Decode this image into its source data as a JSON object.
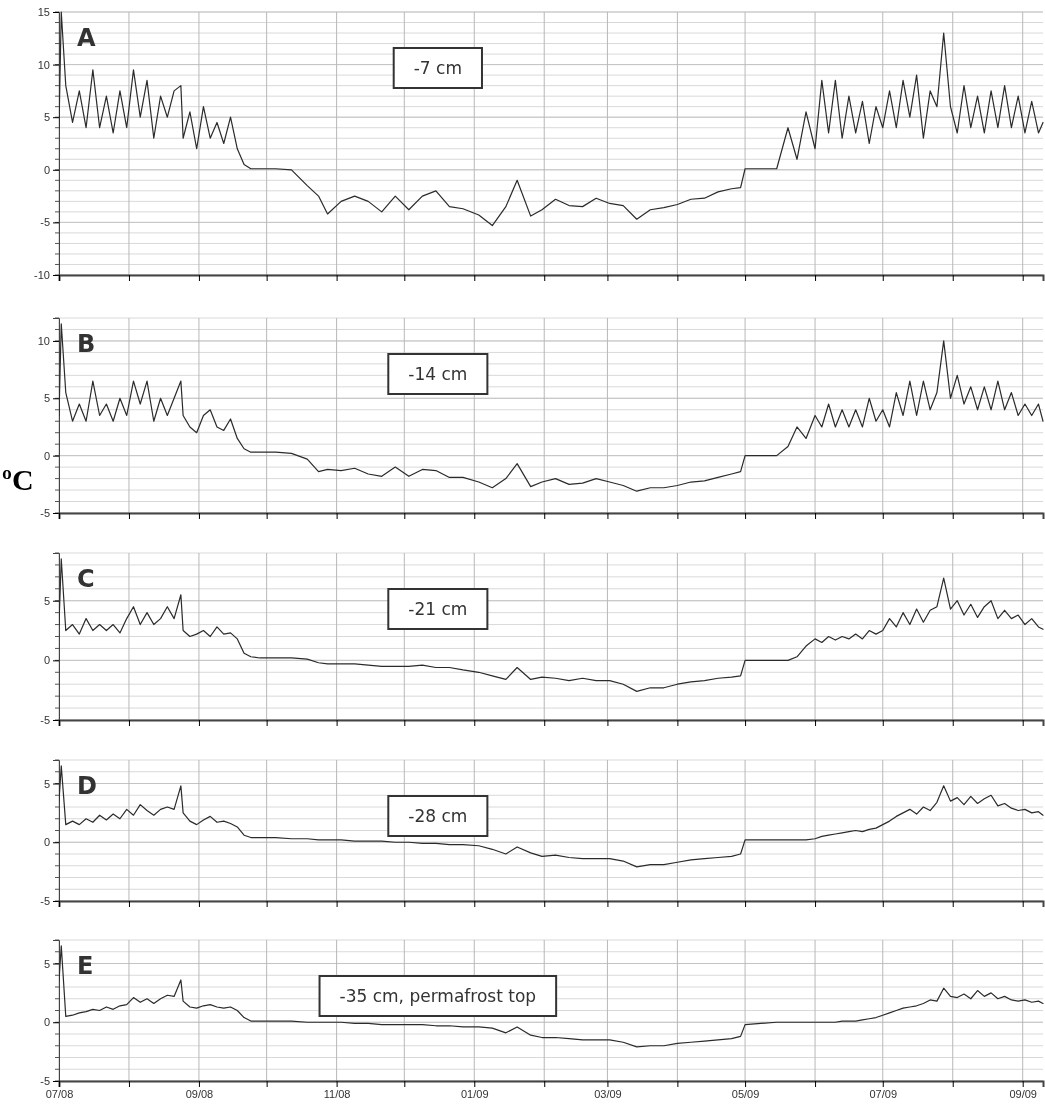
{
  "chart_data": [
    {
      "type": "line",
      "annotations": [
        "A",
        "-7 cm"
      ],
      "color": "#2b2b2b",
      "grid": true,
      "tick_labels": "y",
      "xlim": [
        "2008-07-01",
        "2009-09-10"
      ],
      "xticks": [
        {
          "value": "2008-07-01",
          "label": null
        },
        {
          "value": "2008-08-01",
          "label": null
        },
        {
          "value": "2008-09-01",
          "label": null
        },
        {
          "value": "2008-10-01",
          "label": null
        },
        {
          "value": "2008-11-01",
          "label": null
        },
        {
          "value": "2008-12-01",
          "label": null
        },
        {
          "value": "2009-01-01",
          "label": null
        },
        {
          "value": "2009-02-01",
          "label": null
        },
        {
          "value": "2009-03-01",
          "label": null
        },
        {
          "value": "2009-04-01",
          "label": null
        },
        {
          "value": "2009-05-01",
          "label": null
        },
        {
          "value": "2009-06-01",
          "label": null
        },
        {
          "value": "2009-07-01",
          "label": null
        },
        {
          "value": "2009-08-01",
          "label": null
        },
        {
          "value": "2009-09-01",
          "label": null
        }
      ],
      "ylim": [
        -10,
        15
      ],
      "yticks": [
        -10,
        -5,
        0,
        5,
        10,
        15
      ],
      "x": [
        "2008-07-01",
        "2008-07-02",
        "2008-07-04",
        "2008-07-07",
        "2008-07-10",
        "2008-07-13",
        "2008-07-16",
        "2008-07-19",
        "2008-07-22",
        "2008-07-25",
        "2008-07-28",
        "2008-07-31",
        "2008-08-03",
        "2008-08-06",
        "2008-08-09",
        "2008-08-12",
        "2008-08-15",
        "2008-08-18",
        "2008-08-21",
        "2008-08-24",
        "2008-08-25",
        "2008-08-28",
        "2008-08-31",
        "2008-09-03",
        "2008-09-06",
        "2008-09-09",
        "2008-09-12",
        "2008-09-15",
        "2008-09-18",
        "2008-09-21",
        "2008-09-24",
        "2008-09-28",
        "2008-10-05",
        "2008-10-12",
        "2008-10-19",
        "2008-10-24",
        "2008-10-28",
        "2008-11-03",
        "2008-11-09",
        "2008-11-15",
        "2008-11-21",
        "2008-11-27",
        "2008-12-03",
        "2008-12-09",
        "2008-12-15",
        "2008-12-21",
        "2008-12-27",
        "2009-01-03",
        "2009-01-09",
        "2009-01-15",
        "2009-01-20",
        "2009-01-26",
        "2009-01-31",
        "2009-02-06",
        "2009-02-12",
        "2009-02-18",
        "2009-02-24",
        "2009-03-02",
        "2009-03-08",
        "2009-03-14",
        "2009-03-20",
        "2009-03-26",
        "2009-04-01",
        "2009-04-07",
        "2009-04-13",
        "2009-04-19",
        "2009-04-25",
        "2009-04-29",
        "2009-05-01",
        "2009-05-08",
        "2009-05-15",
        "2009-05-20",
        "2009-05-24",
        "2009-05-28",
        "2009-06-01",
        "2009-06-04",
        "2009-06-07",
        "2009-06-10",
        "2009-06-13",
        "2009-06-16",
        "2009-06-19",
        "2009-06-22",
        "2009-06-25",
        "2009-06-28",
        "2009-07-01",
        "2009-07-04",
        "2009-07-07",
        "2009-07-10",
        "2009-07-13",
        "2009-07-16",
        "2009-07-19",
        "2009-07-22",
        "2009-07-25",
        "2009-07-28",
        "2009-07-31",
        "2009-08-03",
        "2009-08-06",
        "2009-08-09",
        "2009-08-12",
        "2009-08-15",
        "2009-08-18",
        "2009-08-21",
        "2009-08-24",
        "2009-08-27",
        "2009-08-30",
        "2009-09-02",
        "2009-09-05",
        "2009-09-08",
        "2009-09-10"
      ],
      "values": [
        4,
        15,
        8,
        4.5,
        7.5,
        4,
        9.5,
        4,
        7,
        3.5,
        7.5,
        4,
        9.5,
        5,
        8.5,
        3,
        7,
        5,
        7.5,
        8,
        3,
        5.5,
        2,
        6,
        3,
        4.5,
        2.5,
        5,
        2,
        0.5,
        0.1,
        0.1,
        0.1,
        0,
        -1.5,
        -2.5,
        -4.2,
        -3,
        -2.5,
        -3,
        -4,
        -2.5,
        -3.8,
        -2.5,
        -2,
        -3.5,
        -3.7,
        -4.3,
        -5.3,
        -3.5,
        -1,
        -4.4,
        -3.8,
        -2.8,
        -3.4,
        -3.5,
        -2.7,
        -3.2,
        -3.4,
        -4.7,
        -3.8,
        -3.6,
        -3.3,
        -2.8,
        -2.7,
        -2.1,
        -1.8,
        -1.7,
        0.1,
        0.1,
        0.1,
        4,
        1,
        5.5,
        2,
        8.5,
        3.5,
        8.5,
        3,
        7,
        3.5,
        6.5,
        2.5,
        6,
        4,
        7.5,
        4,
        8.5,
        5,
        9,
        3,
        7.5,
        6,
        13,
        6,
        3.5,
        8,
        4,
        7,
        3.5,
        7.5,
        4,
        8,
        4,
        7,
        3.5,
        6.5,
        3.5,
        4.5
      ]
    },
    {
      "type": "line",
      "annotations": [
        "B",
        "-14 cm"
      ],
      "ylabel": "ºC",
      "color": "#2b2b2b",
      "grid": true,
      "tick_labels": "y",
      "xlim": [
        "2008-07-01",
        "2009-09-10"
      ],
      "xticks": [
        {
          "value": "2008-07-01",
          "label": null
        },
        {
          "value": "2008-08-01",
          "label": null
        },
        {
          "value": "2008-09-01",
          "label": null
        },
        {
          "value": "2008-10-01",
          "label": null
        },
        {
          "value": "2008-11-01",
          "label": null
        },
        {
          "value": "2008-12-01",
          "label": null
        },
        {
          "value": "2009-01-01",
          "label": null
        },
        {
          "value": "2009-02-01",
          "label": null
        },
        {
          "value": "2009-03-01",
          "label": null
        },
        {
          "value": "2009-04-01",
          "label": null
        },
        {
          "value": "2009-05-01",
          "label": null
        },
        {
          "value": "2009-06-01",
          "label": null
        },
        {
          "value": "2009-07-01",
          "label": null
        },
        {
          "value": "2009-08-01",
          "label": null
        },
        {
          "value": "2009-09-01",
          "label": null
        }
      ],
      "ylim": [
        -5,
        12
      ],
      "yticks": [
        -5,
        0,
        5,
        10
      ],
      "x": [
        "2008-07-01",
        "2008-07-02",
        "2008-07-04",
        "2008-07-07",
        "2008-07-10",
        "2008-07-13",
        "2008-07-16",
        "2008-07-19",
        "2008-07-22",
        "2008-07-25",
        "2008-07-28",
        "2008-07-31",
        "2008-08-03",
        "2008-08-06",
        "2008-08-09",
        "2008-08-12",
        "2008-08-15",
        "2008-08-18",
        "2008-08-21",
        "2008-08-24",
        "2008-08-25",
        "2008-08-28",
        "2008-08-31",
        "2008-09-03",
        "2008-09-06",
        "2008-09-09",
        "2008-09-12",
        "2008-09-15",
        "2008-09-18",
        "2008-09-21",
        "2008-09-24",
        "2008-09-28",
        "2008-10-05",
        "2008-10-12",
        "2008-10-19",
        "2008-10-24",
        "2008-10-28",
        "2008-11-03",
        "2008-11-09",
        "2008-11-15",
        "2008-11-21",
        "2008-11-27",
        "2008-12-03",
        "2008-12-09",
        "2008-12-15",
        "2008-12-21",
        "2008-12-27",
        "2009-01-03",
        "2009-01-09",
        "2009-01-15",
        "2009-01-20",
        "2009-01-26",
        "2009-01-31",
        "2009-02-06",
        "2009-02-12",
        "2009-02-18",
        "2009-02-24",
        "2009-03-02",
        "2009-03-08",
        "2009-03-14",
        "2009-03-20",
        "2009-03-26",
        "2009-04-01",
        "2009-04-07",
        "2009-04-13",
        "2009-04-19",
        "2009-04-25",
        "2009-04-29",
        "2009-05-01",
        "2009-05-08",
        "2009-05-15",
        "2009-05-20",
        "2009-05-24",
        "2009-05-28",
        "2009-06-01",
        "2009-06-04",
        "2009-06-07",
        "2009-06-10",
        "2009-06-13",
        "2009-06-16",
        "2009-06-19",
        "2009-06-22",
        "2009-06-25",
        "2009-06-28",
        "2009-07-01",
        "2009-07-04",
        "2009-07-07",
        "2009-07-10",
        "2009-07-13",
        "2009-07-16",
        "2009-07-19",
        "2009-07-22",
        "2009-07-25",
        "2009-07-28",
        "2009-07-31",
        "2009-08-03",
        "2009-08-06",
        "2009-08-09",
        "2009-08-12",
        "2009-08-15",
        "2009-08-18",
        "2009-08-21",
        "2009-08-24",
        "2009-08-27",
        "2009-08-30",
        "2009-09-02",
        "2009-09-05",
        "2009-09-08",
        "2009-09-10"
      ],
      "values": [
        3.5,
        11.5,
        5.5,
        3,
        4.5,
        3,
        6.5,
        3.5,
        4.5,
        3,
        5,
        3.5,
        6.5,
        4.5,
        6.5,
        3,
        5,
        3.5,
        5,
        6.5,
        3.5,
        2.5,
        2,
        3.5,
        4,
        2.5,
        2.2,
        3.2,
        1.5,
        0.6,
        0.3,
        0.3,
        0.3,
        0.2,
        -0.3,
        -1.4,
        -1.2,
        -1.3,
        -1.1,
        -1.6,
        -1.8,
        -1,
        -1.8,
        -1.2,
        -1.3,
        -1.9,
        -1.9,
        -2.3,
        -2.8,
        -2,
        -0.7,
        -2.7,
        -2.3,
        -2,
        -2.5,
        -2.4,
        -2,
        -2.3,
        -2.6,
        -3.1,
        -2.8,
        -2.8,
        -2.6,
        -2.3,
        -2.2,
        -1.9,
        -1.6,
        -1.4,
        0,
        0,
        0,
        0.8,
        2.5,
        1.5,
        3.5,
        2.5,
        4.5,
        2.5,
        4,
        2.5,
        4,
        2.5,
        5,
        3,
        4,
        2.5,
        5.5,
        3.5,
        6.5,
        3.5,
        6.5,
        4,
        5.5,
        10,
        5,
        7,
        4.5,
        6,
        4,
        6,
        4,
        6.5,
        4,
        5.5,
        3.5,
        4.5,
        3.5,
        4.5,
        3
      ]
    },
    {
      "type": "line",
      "annotations": [
        "C",
        "-21 cm"
      ],
      "color": "#2b2b2b",
      "grid": true,
      "tick_labels": "y",
      "xlim": [
        "2008-07-01",
        "2009-09-10"
      ],
      "xticks": [
        {
          "value": "2008-07-01",
          "label": null
        },
        {
          "value": "2008-08-01",
          "label": null
        },
        {
          "value": "2008-09-01",
          "label": null
        },
        {
          "value": "2008-10-01",
          "label": null
        },
        {
          "value": "2008-11-01",
          "label": null
        },
        {
          "value": "2008-12-01",
          "label": null
        },
        {
          "value": "2009-01-01",
          "label": null
        },
        {
          "value": "2009-02-01",
          "label": null
        },
        {
          "value": "2009-03-01",
          "label": null
        },
        {
          "value": "2009-04-01",
          "label": null
        },
        {
          "value": "2009-05-01",
          "label": null
        },
        {
          "value": "2009-06-01",
          "label": null
        },
        {
          "value": "2009-07-01",
          "label": null
        },
        {
          "value": "2009-08-01",
          "label": null
        },
        {
          "value": "2009-09-01",
          "label": null
        }
      ],
      "ylim": [
        -5,
        9
      ],
      "yticks": [
        -5,
        0,
        5
      ],
      "x": [
        "2008-07-01",
        "2008-07-02",
        "2008-07-04",
        "2008-07-07",
        "2008-07-10",
        "2008-07-13",
        "2008-07-16",
        "2008-07-19",
        "2008-07-22",
        "2008-07-25",
        "2008-07-28",
        "2008-07-31",
        "2008-08-03",
        "2008-08-06",
        "2008-08-09",
        "2008-08-12",
        "2008-08-15",
        "2008-08-18",
        "2008-08-21",
        "2008-08-24",
        "2008-08-25",
        "2008-08-28",
        "2008-08-31",
        "2008-09-03",
        "2008-09-06",
        "2008-09-09",
        "2008-09-12",
        "2008-09-15",
        "2008-09-18",
        "2008-09-21",
        "2008-09-24",
        "2008-09-28",
        "2008-10-05",
        "2008-10-12",
        "2008-10-19",
        "2008-10-24",
        "2008-10-28",
        "2008-11-03",
        "2008-11-09",
        "2008-11-15",
        "2008-11-21",
        "2008-11-27",
        "2008-12-03",
        "2008-12-09",
        "2008-12-15",
        "2008-12-21",
        "2008-12-27",
        "2009-01-03",
        "2009-01-09",
        "2009-01-15",
        "2009-01-20",
        "2009-01-26",
        "2009-01-31",
        "2009-02-06",
        "2009-02-12",
        "2009-02-18",
        "2009-02-24",
        "2009-03-02",
        "2009-03-08",
        "2009-03-14",
        "2009-03-20",
        "2009-03-26",
        "2009-04-01",
        "2009-04-07",
        "2009-04-13",
        "2009-04-19",
        "2009-04-25",
        "2009-04-29",
        "2009-05-01",
        "2009-05-08",
        "2009-05-15",
        "2009-05-20",
        "2009-05-24",
        "2009-05-28",
        "2009-06-01",
        "2009-06-04",
        "2009-06-07",
        "2009-06-10",
        "2009-06-13",
        "2009-06-16",
        "2009-06-19",
        "2009-06-22",
        "2009-06-25",
        "2009-06-28",
        "2009-07-01",
        "2009-07-04",
        "2009-07-07",
        "2009-07-10",
        "2009-07-13",
        "2009-07-16",
        "2009-07-19",
        "2009-07-22",
        "2009-07-25",
        "2009-07-28",
        "2009-07-31",
        "2009-08-03",
        "2009-08-06",
        "2009-08-09",
        "2009-08-12",
        "2009-08-15",
        "2009-08-18",
        "2009-08-21",
        "2009-08-24",
        "2009-08-27",
        "2009-08-30",
        "2009-09-02",
        "2009-09-05",
        "2009-09-08",
        "2009-09-10"
      ],
      "values": [
        3,
        8.5,
        2.5,
        3,
        2.2,
        3.5,
        2.5,
        3,
        2.5,
        3,
        2.3,
        3.5,
        4.5,
        3,
        4,
        3,
        3.5,
        4.5,
        3.5,
        5.5,
        2.5,
        2,
        2.2,
        2.5,
        2,
        2.8,
        2.2,
        2.3,
        1.8,
        0.6,
        0.3,
        0.2,
        0.2,
        0.2,
        0.1,
        -0.2,
        -0.3,
        -0.3,
        -0.3,
        -0.4,
        -0.5,
        -0.5,
        -0.5,
        -0.4,
        -0.6,
        -0.6,
        -0.8,
        -1,
        -1.3,
        -1.6,
        -0.6,
        -1.6,
        -1.4,
        -1.5,
        -1.7,
        -1.5,
        -1.7,
        -1.7,
        -2,
        -2.6,
        -2.3,
        -2.3,
        -2,
        -1.8,
        -1.7,
        -1.5,
        -1.4,
        -1.3,
        0,
        0,
        0,
        0,
        0.3,
        1.2,
        1.8,
        1.5,
        2,
        1.7,
        2,
        1.8,
        2.2,
        1.8,
        2.5,
        2.2,
        2.5,
        3.5,
        2.8,
        4,
        3,
        4.3,
        3.2,
        4.2,
        4.5,
        6.9,
        4.3,
        5,
        3.8,
        4.7,
        3.6,
        4.5,
        5,
        3.5,
        4.2,
        3.5,
        3.8,
        3,
        3.5,
        2.8,
        2.6
      ]
    },
    {
      "type": "line",
      "annotations": [
        "D",
        "-28 cm"
      ],
      "color": "#2b2b2b",
      "grid": true,
      "tick_labels": "y",
      "xlim": [
        "2008-07-01",
        "2009-09-10"
      ],
      "xticks": [
        {
          "value": "2008-07-01",
          "label": null
        },
        {
          "value": "2008-08-01",
          "label": null
        },
        {
          "value": "2008-09-01",
          "label": null
        },
        {
          "value": "2008-10-01",
          "label": null
        },
        {
          "value": "2008-11-01",
          "label": null
        },
        {
          "value": "2008-12-01",
          "label": null
        },
        {
          "value": "2009-01-01",
          "label": null
        },
        {
          "value": "2009-02-01",
          "label": null
        },
        {
          "value": "2009-03-01",
          "label": null
        },
        {
          "value": "2009-04-01",
          "label": null
        },
        {
          "value": "2009-05-01",
          "label": null
        },
        {
          "value": "2009-06-01",
          "label": null
        },
        {
          "value": "2009-07-01",
          "label": null
        },
        {
          "value": "2009-08-01",
          "label": null
        },
        {
          "value": "2009-09-01",
          "label": null
        }
      ],
      "ylim": [
        -5,
        7
      ],
      "yticks": [
        -5,
        0,
        5
      ],
      "x": [
        "2008-07-01",
        "2008-07-02",
        "2008-07-04",
        "2008-07-07",
        "2008-07-10",
        "2008-07-13",
        "2008-07-16",
        "2008-07-19",
        "2008-07-22",
        "2008-07-25",
        "2008-07-28",
        "2008-07-31",
        "2008-08-03",
        "2008-08-06",
        "2008-08-09",
        "2008-08-12",
        "2008-08-15",
        "2008-08-18",
        "2008-08-21",
        "2008-08-24",
        "2008-08-25",
        "2008-08-28",
        "2008-08-31",
        "2008-09-03",
        "2008-09-06",
        "2008-09-09",
        "2008-09-12",
        "2008-09-15",
        "2008-09-18",
        "2008-09-21",
        "2008-09-24",
        "2008-09-28",
        "2008-10-05",
        "2008-10-12",
        "2008-10-19",
        "2008-10-24",
        "2008-10-28",
        "2008-11-03",
        "2008-11-09",
        "2008-11-15",
        "2008-11-21",
        "2008-11-27",
        "2008-12-03",
        "2008-12-09",
        "2008-12-15",
        "2008-12-21",
        "2008-12-27",
        "2009-01-03",
        "2009-01-09",
        "2009-01-15",
        "2009-01-20",
        "2009-01-26",
        "2009-01-31",
        "2009-02-06",
        "2009-02-12",
        "2009-02-18",
        "2009-02-24",
        "2009-03-02",
        "2009-03-08",
        "2009-03-14",
        "2009-03-20",
        "2009-03-26",
        "2009-04-01",
        "2009-04-07",
        "2009-04-13",
        "2009-04-19",
        "2009-04-25",
        "2009-04-29",
        "2009-05-01",
        "2009-05-08",
        "2009-05-15",
        "2009-05-20",
        "2009-05-24",
        "2009-05-28",
        "2009-06-01",
        "2009-06-04",
        "2009-06-07",
        "2009-06-10",
        "2009-06-13",
        "2009-06-16",
        "2009-06-19",
        "2009-06-22",
        "2009-06-25",
        "2009-06-28",
        "2009-07-01",
        "2009-07-04",
        "2009-07-07",
        "2009-07-10",
        "2009-07-13",
        "2009-07-16",
        "2009-07-19",
        "2009-07-22",
        "2009-07-25",
        "2009-07-28",
        "2009-07-31",
        "2009-08-03",
        "2009-08-06",
        "2009-08-09",
        "2009-08-12",
        "2009-08-15",
        "2009-08-18",
        "2009-08-21",
        "2009-08-24",
        "2009-08-27",
        "2009-08-30",
        "2009-09-02",
        "2009-09-05",
        "2009-09-08",
        "2009-09-10"
      ],
      "values": [
        3.5,
        6.5,
        1.5,
        1.8,
        1.5,
        2,
        1.7,
        2.3,
        1.9,
        2.4,
        2,
        2.8,
        2.3,
        3.2,
        2.7,
        2.3,
        2.8,
        3,
        2.8,
        4.8,
        2.5,
        1.8,
        1.5,
        1.9,
        2.2,
        1.7,
        1.8,
        1.6,
        1.3,
        0.6,
        0.4,
        0.4,
        0.4,
        0.3,
        0.3,
        0.2,
        0.2,
        0.2,
        0.1,
        0.1,
        0.1,
        0,
        0,
        -0.1,
        -0.1,
        -0.2,
        -0.2,
        -0.3,
        -0.6,
        -1,
        -0.4,
        -0.9,
        -1.2,
        -1.1,
        -1.3,
        -1.4,
        -1.4,
        -1.4,
        -1.6,
        -2.1,
        -1.9,
        -1.9,
        -1.7,
        -1.5,
        -1.4,
        -1.3,
        -1.2,
        -1,
        0.2,
        0.2,
        0.2,
        0.2,
        0.2,
        0.2,
        0.3,
        0.5,
        0.6,
        0.7,
        0.8,
        0.9,
        1,
        0.9,
        1.1,
        1.2,
        1.5,
        1.8,
        2.2,
        2.5,
        2.8,
        2.4,
        3,
        2.7,
        3.4,
        4.8,
        3.5,
        3.8,
        3.2,
        3.9,
        3.3,
        3.7,
        4,
        3.1,
        3.3,
        2.9,
        2.7,
        2.8,
        2.5,
        2.6,
        2.3
      ]
    },
    {
      "type": "line",
      "annotations": [
        "E",
        "-35 cm, permafrost top"
      ],
      "color": "#2b2b2b",
      "grid": true,
      "xlim": [
        "2008-07-01",
        "2009-09-10"
      ],
      "xticks": [
        {
          "value": "2008-07-01",
          "label": "07/08"
        },
        {
          "value": "2008-08-01",
          "label": null
        },
        {
          "value": "2008-09-01",
          "label": "09/08"
        },
        {
          "value": "2008-10-01",
          "label": null
        },
        {
          "value": "2008-11-01",
          "label": "11/08"
        },
        {
          "value": "2008-12-01",
          "label": null
        },
        {
          "value": "2009-01-01",
          "label": "01/09"
        },
        {
          "value": "2009-02-01",
          "label": null
        },
        {
          "value": "2009-03-01",
          "label": "03/09"
        },
        {
          "value": "2009-04-01",
          "label": null
        },
        {
          "value": "2009-05-01",
          "label": "05/09"
        },
        {
          "value": "2009-06-01",
          "label": null
        },
        {
          "value": "2009-07-01",
          "label": "07/09"
        },
        {
          "value": "2009-08-01",
          "label": null
        },
        {
          "value": "2009-09-01",
          "label": "09/09"
        }
      ],
      "ylim": [
        -5,
        7
      ],
      "yticks": [
        -5,
        0,
        5
      ],
      "x": [
        "2008-07-01",
        "2008-07-02",
        "2008-07-04",
        "2008-07-07",
        "2008-07-10",
        "2008-07-13",
        "2008-07-16",
        "2008-07-19",
        "2008-07-22",
        "2008-07-25",
        "2008-07-28",
        "2008-07-31",
        "2008-08-03",
        "2008-08-06",
        "2008-08-09",
        "2008-08-12",
        "2008-08-15",
        "2008-08-18",
        "2008-08-21",
        "2008-08-24",
        "2008-08-25",
        "2008-08-28",
        "2008-08-31",
        "2008-09-03",
        "2008-09-06",
        "2008-09-09",
        "2008-09-12",
        "2008-09-15",
        "2008-09-18",
        "2008-09-21",
        "2008-09-24",
        "2008-09-28",
        "2008-10-05",
        "2008-10-12",
        "2008-10-19",
        "2008-10-24",
        "2008-10-28",
        "2008-11-03",
        "2008-11-09",
        "2008-11-15",
        "2008-11-21",
        "2008-11-27",
        "2008-12-03",
        "2008-12-09",
        "2008-12-15",
        "2008-12-21",
        "2008-12-27",
        "2009-01-03",
        "2009-01-09",
        "2009-01-15",
        "2009-01-20",
        "2009-01-26",
        "2009-01-31",
        "2009-02-06",
        "2009-02-12",
        "2009-02-18",
        "2009-02-24",
        "2009-03-02",
        "2009-03-08",
        "2009-03-14",
        "2009-03-20",
        "2009-03-26",
        "2009-04-01",
        "2009-04-07",
        "2009-04-13",
        "2009-04-19",
        "2009-04-25",
        "2009-04-29",
        "2009-05-01",
        "2009-05-08",
        "2009-05-15",
        "2009-05-20",
        "2009-05-24",
        "2009-05-28",
        "2009-06-01",
        "2009-06-04",
        "2009-06-07",
        "2009-06-10",
        "2009-06-13",
        "2009-06-16",
        "2009-06-19",
        "2009-06-22",
        "2009-06-25",
        "2009-06-28",
        "2009-07-01",
        "2009-07-04",
        "2009-07-07",
        "2009-07-10",
        "2009-07-13",
        "2009-07-16",
        "2009-07-19",
        "2009-07-22",
        "2009-07-25",
        "2009-07-28",
        "2009-07-31",
        "2009-08-03",
        "2009-08-06",
        "2009-08-09",
        "2009-08-12",
        "2009-08-15",
        "2009-08-18",
        "2009-08-21",
        "2009-08-24",
        "2009-08-27",
        "2009-08-30",
        "2009-09-02",
        "2009-09-05",
        "2009-09-08",
        "2009-09-10"
      ],
      "values": [
        3.5,
        6.5,
        0.5,
        0.6,
        0.8,
        0.9,
        1.1,
        1,
        1.3,
        1.1,
        1.4,
        1.5,
        2.1,
        1.7,
        2,
        1.6,
        2,
        2.3,
        2.2,
        3.6,
        1.8,
        1.3,
        1.2,
        1.4,
        1.5,
        1.3,
        1.2,
        1.3,
        1,
        0.4,
        0.1,
        0.1,
        0.1,
        0.1,
        0,
        0,
        0,
        0,
        -0.1,
        -0.1,
        -0.2,
        -0.2,
        -0.2,
        -0.2,
        -0.3,
        -0.3,
        -0.4,
        -0.4,
        -0.5,
        -0.9,
        -0.4,
        -1.1,
        -1.3,
        -1.3,
        -1.4,
        -1.5,
        -1.5,
        -1.5,
        -1.7,
        -2.1,
        -2,
        -2,
        -1.8,
        -1.7,
        -1.6,
        -1.5,
        -1.4,
        -1.2,
        -0.2,
        -0.1,
        0,
        0,
        0,
        0,
        0,
        0,
        0,
        0,
        0.1,
        0.1,
        0.1,
        0.2,
        0.3,
        0.4,
        0.6,
        0.8,
        1,
        1.2,
        1.3,
        1.4,
        1.6,
        1.9,
        1.8,
        2.9,
        2.2,
        2.1,
        2.4,
        2,
        2.7,
        2.2,
        2.5,
        2,
        2.2,
        1.9,
        1.8,
        1.9,
        1.7,
        1.8,
        1.6
      ]
    }
  ]
}
